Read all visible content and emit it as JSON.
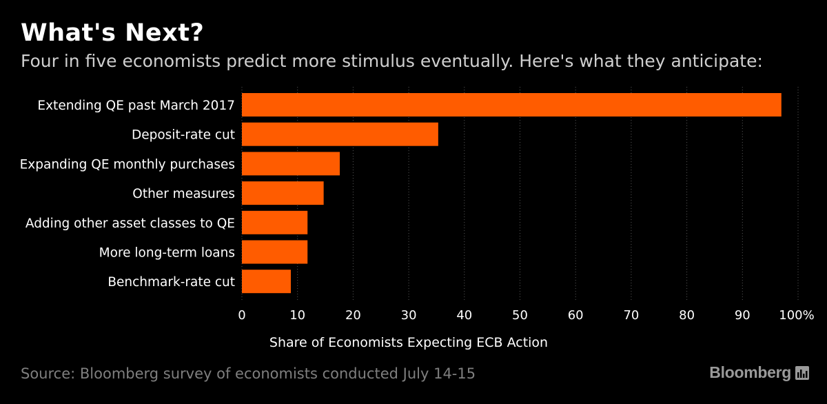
{
  "header": {
    "title": "What's Next?",
    "subtitle": "Four in five economists predict more stimulus eventually. Here's what they anticipate:"
  },
  "chart_data": {
    "type": "bar",
    "orientation": "horizontal",
    "categories": [
      "Extending QE past March 2017",
      "Deposit-rate cut",
      "Expanding QE monthly purchases",
      "Other measures",
      "Adding other asset classes to QE",
      "More long-term loans",
      "Benchmark-rate cut"
    ],
    "values": [
      97,
      35.3,
      17.6,
      14.7,
      11.8,
      11.8,
      8.8
    ],
    "xlim": [
      0,
      100
    ],
    "xticks": [
      0,
      10,
      20,
      30,
      40,
      50,
      60,
      70,
      80,
      90,
      100
    ],
    "xtick_labels": [
      "0",
      "10",
      "20",
      "30",
      "40",
      "50",
      "60",
      "70",
      "80",
      "90",
      "100%"
    ],
    "xlabel": "Share of Economists Expecting ECB Action",
    "grid": "vertical dotted",
    "bar_color": "#ff5c00"
  },
  "footer": {
    "source": "Source: Bloomberg survey of economists conducted July 14-15",
    "brand": "Bloomberg"
  },
  "colors": {
    "background": "#000000",
    "accent": "#ff5c00",
    "grid": "#5a5a5a",
    "muted_text": "#7f7f7f"
  },
  "icons": {
    "brand_logo": "bloomberg-chart-icon"
  }
}
